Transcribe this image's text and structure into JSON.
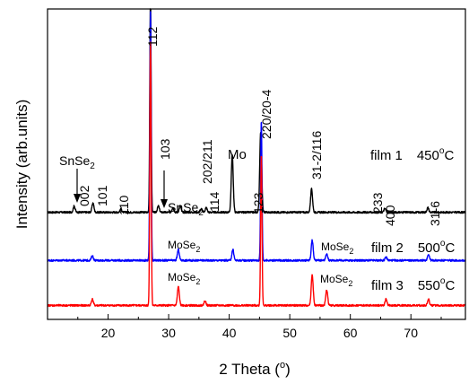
{
  "chart_data": {
    "type": "line",
    "xlabel": "2 Theta (",
    "xlabel_unit": "o",
    "xlabel_close": ")",
    "ylabel": "Intensity (arb.units)",
    "xlim": [
      10,
      79
    ],
    "ylim": [
      0,
      1
    ],
    "x_ticks": [
      20,
      30,
      40,
      50,
      60,
      70
    ],
    "grid": false,
    "colors": {
      "film1": "#000000",
      "film2": "#0000ff",
      "film3": "#ff0000",
      "axis": "#000000"
    },
    "series": [
      {
        "name": "film 1",
        "temp": "450",
        "temp_unit": "o",
        "temp_suffix": "C",
        "color": "#000000",
        "baseline": 0.345,
        "peaks": [
          {
            "x": 14.4,
            "h": 0.02
          },
          {
            "x": 17.5,
            "h": 0.03
          },
          {
            "x": 22.1,
            "h": 0.01
          },
          {
            "x": 27.0,
            "h": 0.7
          },
          {
            "x": 28.3,
            "h": 0.02
          },
          {
            "x": 30.7,
            "h": 0.015
          },
          {
            "x": 31.9,
            "h": 0.02
          },
          {
            "x": 35.4,
            "h": 0.01
          },
          {
            "x": 36.2,
            "h": 0.015
          },
          {
            "x": 40.5,
            "h": 0.185
          },
          {
            "x": 45.2,
            "h": 0.26
          },
          {
            "x": 53.6,
            "h": 0.075
          },
          {
            "x": 65.7,
            "h": 0.012
          },
          {
            "x": 72.8,
            "h": 0.015
          }
        ]
      },
      {
        "name": "film 2",
        "temp": "500",
        "temp_unit": "o",
        "temp_suffix": "C",
        "color": "#0000ff",
        "baseline": 0.19,
        "peaks": [
          {
            "x": 17.4,
            "h": 0.015
          },
          {
            "x": 27.0,
            "h": 0.8
          },
          {
            "x": 31.6,
            "h": 0.035
          },
          {
            "x": 40.6,
            "h": 0.035
          },
          {
            "x": 45.3,
            "h": 0.45
          },
          {
            "x": 53.7,
            "h": 0.065
          },
          {
            "x": 56.1,
            "h": 0.02
          },
          {
            "x": 65.9,
            "h": 0.01
          },
          {
            "x": 72.9,
            "h": 0.02
          }
        ]
      },
      {
        "name": "film 3",
        "temp": "550",
        "temp_unit": "o",
        "temp_suffix": "C",
        "color": "#ff0000",
        "baseline": 0.045,
        "peaks": [
          {
            "x": 17.4,
            "h": 0.02
          },
          {
            "x": 27.0,
            "h": 0.85
          },
          {
            "x": 31.6,
            "h": 0.06
          },
          {
            "x": 36.0,
            "h": 0.015
          },
          {
            "x": 45.3,
            "h": 0.49
          },
          {
            "x": 53.7,
            "h": 0.1
          },
          {
            "x": 56.1,
            "h": 0.05
          },
          {
            "x": 65.9,
            "h": 0.02
          },
          {
            "x": 72.9,
            "h": 0.02
          }
        ]
      }
    ],
    "peak_labels": [
      {
        "text": "002",
        "x": 15.3
      },
      {
        "text": "101",
        "x": 17.5
      },
      {
        "text": "110",
        "x": 22.0
      },
      {
        "text": "112",
        "x": 26.7
      },
      {
        "text": "103",
        "x": 28.6
      },
      {
        "text": "202/211",
        "x": 35.7
      },
      {
        "text": "114",
        "x": 37.0
      },
      {
        "text": "123",
        "x": 43.3
      },
      {
        "text": "220/20-4",
        "x": 45.1
      },
      {
        "text": "31-2/116",
        "x": 53.3
      },
      {
        "text": "233",
        "x": 63.6
      },
      {
        "text": "400",
        "x": 65.3
      },
      {
        "text": "31-6",
        "x": 72.8
      }
    ],
    "phase_labels": [
      {
        "text": "SnSe",
        "sub": "2",
        "arrow": true
      },
      {
        "text": "SnSe",
        "sub": "2",
        "arrow": true
      },
      {
        "text": "Mo",
        "sub": "",
        "arrow": false
      },
      {
        "text": "MoSe",
        "sub": "2",
        "arrow": false
      },
      {
        "text": "MoSe",
        "sub": "2",
        "arrow": false
      },
      {
        "text": "MoSe",
        "sub": "2",
        "arrow": false
      },
      {
        "text": "MoSe",
        "sub": "2",
        "arrow": false
      }
    ]
  }
}
